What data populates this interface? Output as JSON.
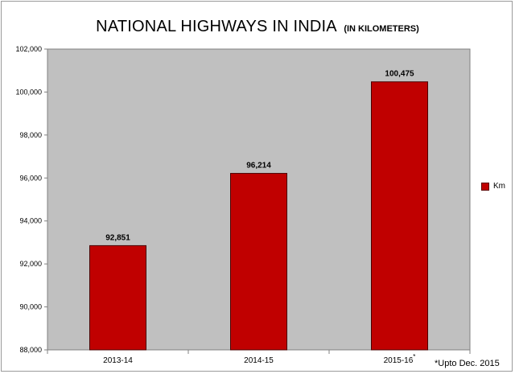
{
  "chart_data": {
    "type": "bar",
    "title": "NATIONAL HIGHWAYS IN INDIA",
    "subtitle": "(IN KILOMETERS)",
    "categories": [
      "2013-14",
      "2014-15",
      "2015-16"
    ],
    "category_superscripts": [
      "",
      "",
      "*"
    ],
    "series": [
      {
        "name": "Km",
        "values": [
          92851,
          96214,
          100475
        ],
        "color": "#c00000"
      }
    ],
    "data_labels": [
      "92,851",
      "96,214",
      "100,475"
    ],
    "ylim": [
      88000,
      102000
    ],
    "yticks": [
      88000,
      90000,
      92000,
      94000,
      96000,
      98000,
      100000,
      102000
    ],
    "ytick_labels": [
      "88,000",
      "90,000",
      "92,000",
      "94,000",
      "96,000",
      "98,000",
      "100,000",
      "102,000"
    ],
    "plot_background": "#c0c0c0",
    "grid": false,
    "legend_position": "right",
    "footnote": "*Upto Dec. 2015"
  }
}
